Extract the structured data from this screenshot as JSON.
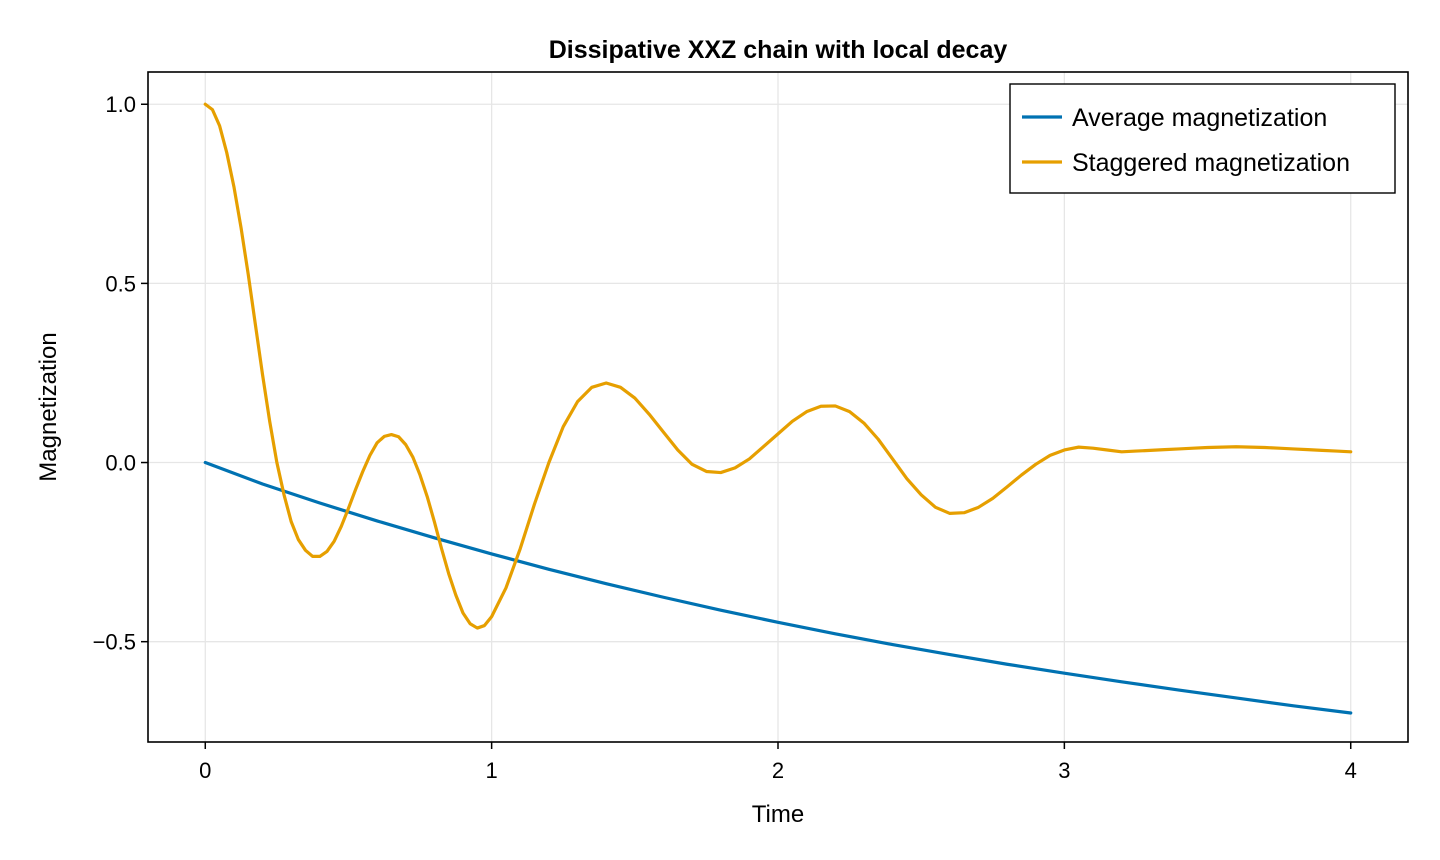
{
  "chart_data": {
    "type": "line",
    "title": "Dissipative XXZ chain with local decay",
    "xlabel": "Time",
    "ylabel": "Magnetization",
    "xlim": [
      -0.2,
      4.2
    ],
    "ylim": [
      -0.78,
      1.09
    ],
    "xticks": [
      0,
      1,
      2,
      3,
      4
    ],
    "xtick_labels": [
      "0",
      "1",
      "2",
      "3",
      "4"
    ],
    "yticks": [
      -0.5,
      0.0,
      0.5,
      1.0
    ],
    "ytick_labels": [
      "−0.5",
      "0.0",
      "0.5",
      "1.0"
    ],
    "grid": true,
    "legend_position": "top-right",
    "series": [
      {
        "name": "Average magnetization",
        "color": "#0072b2",
        "x": [
          0,
          0.2,
          0.4,
          0.6,
          0.8,
          1.0,
          1.2,
          1.4,
          1.6,
          1.8,
          2.0,
          2.2,
          2.4,
          2.6,
          2.8,
          3.0,
          3.2,
          3.4,
          3.6,
          3.8,
          4.0
        ],
        "y": [
          0.0,
          -0.06,
          -0.113,
          -0.163,
          -0.21,
          -0.255,
          -0.298,
          -0.338,
          -0.376,
          -0.412,
          -0.446,
          -0.478,
          -0.508,
          -0.536,
          -0.563,
          -0.588,
          -0.612,
          -0.635,
          -0.657,
          -0.679,
          -0.699
        ]
      },
      {
        "name": "Staggered magnetization",
        "color": "#e69f00",
        "x": [
          0,
          0.025,
          0.05,
          0.075,
          0.1,
          0.125,
          0.15,
          0.175,
          0.2,
          0.225,
          0.25,
          0.275,
          0.3,
          0.325,
          0.35,
          0.375,
          0.4,
          0.425,
          0.45,
          0.475,
          0.5,
          0.525,
          0.55,
          0.575,
          0.6,
          0.625,
          0.65,
          0.675,
          0.7,
          0.725,
          0.75,
          0.775,
          0.8,
          0.825,
          0.85,
          0.875,
          0.9,
          0.925,
          0.95,
          0.975,
          1.0,
          1.05,
          1.1,
          1.15,
          1.2,
          1.25,
          1.3,
          1.35,
          1.4,
          1.45,
          1.5,
          1.55,
          1.6,
          1.65,
          1.7,
          1.75,
          1.8,
          1.85,
          1.9,
          1.95,
          2.0,
          2.05,
          2.1,
          2.15,
          2.2,
          2.25,
          2.3,
          2.35,
          2.4,
          2.45,
          2.5,
          2.55,
          2.6,
          2.65,
          2.7,
          2.75,
          2.8,
          2.85,
          2.9,
          2.95,
          3.0,
          3.05,
          3.1,
          3.15,
          3.2,
          3.25,
          3.3,
          3.35,
          3.4,
          3.45,
          3.5,
          3.55,
          3.6,
          3.65,
          3.7,
          3.75,
          3.8,
          3.85,
          3.9,
          3.95,
          4.0
        ],
        "y": [
          1.0,
          0.985,
          0.94,
          0.865,
          0.77,
          0.655,
          0.525,
          0.385,
          0.245,
          0.115,
          0.0,
          -0.09,
          -0.165,
          -0.215,
          -0.245,
          -0.262,
          -0.262,
          -0.248,
          -0.22,
          -0.178,
          -0.128,
          -0.075,
          -0.025,
          0.02,
          0.055,
          0.073,
          0.078,
          0.072,
          0.05,
          0.015,
          -0.035,
          -0.095,
          -0.165,
          -0.24,
          -0.31,
          -0.37,
          -0.42,
          -0.45,
          -0.462,
          -0.455,
          -0.43,
          -0.35,
          -0.24,
          -0.115,
          0.0,
          0.1,
          0.17,
          0.21,
          0.222,
          0.21,
          0.18,
          0.135,
          0.085,
          0.035,
          -0.005,
          -0.025,
          -0.028,
          -0.015,
          0.01,
          0.045,
          0.08,
          0.115,
          0.142,
          0.157,
          0.158,
          0.142,
          0.11,
          0.065,
          0.01,
          -0.045,
          -0.09,
          -0.125,
          -0.142,
          -0.14,
          -0.125,
          -0.1,
          -0.068,
          -0.035,
          -0.005,
          0.02,
          0.035,
          0.043,
          0.04,
          0.035,
          0.03,
          0.032,
          0.034,
          0.036,
          0.038,
          0.04,
          0.042,
          0.043,
          0.044,
          0.043,
          0.042,
          0.04,
          0.038,
          0.036,
          0.034,
          0.032,
          0.03
        ]
      }
    ]
  }
}
